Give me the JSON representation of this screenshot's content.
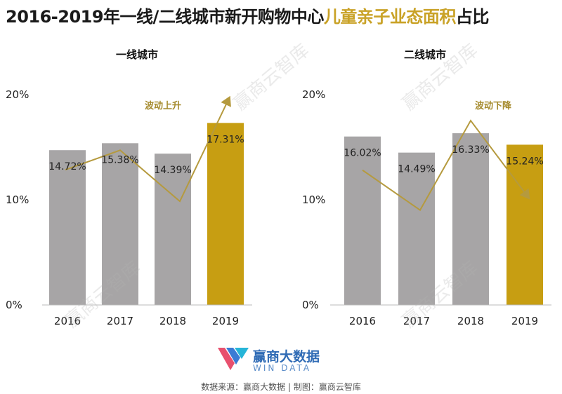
{
  "title_main": "2016-2019年一线/二线城市新开购物中心",
  "title_highlight": "儿童亲子业态面积",
  "title_tail": "占比",
  "colors": {
    "bar_gray": "#a7a5a6",
    "bar_gold": "#c79e12",
    "arrow": "#b59a3e",
    "annotation": "#a58a2c",
    "background": "#ffffff"
  },
  "chart_data": [
    {
      "type": "bar",
      "title": "一线城市",
      "categories": [
        "2016",
        "2017",
        "2018",
        "2019"
      ],
      "values": [
        14.72,
        15.38,
        14.39,
        17.31
      ],
      "value_labels": [
        "14.72%",
        "15.38%",
        "14.39%",
        "17.31%"
      ],
      "highlight_index": 3,
      "ylim": [
        0,
        20
      ],
      "yticks": [
        "0%",
        "10%",
        "20%"
      ],
      "annotation": "波动上升",
      "grid": false
    },
    {
      "type": "bar",
      "title": "二线城市",
      "categories": [
        "2016",
        "2017",
        "2018",
        "2019"
      ],
      "values": [
        16.02,
        14.49,
        16.33,
        15.24
      ],
      "value_labels": [
        "16.02%",
        "14.49%",
        "16.33%",
        "15.24%"
      ],
      "highlight_index": 3,
      "ylim": [
        0,
        20
      ],
      "yticks": [
        "0%",
        "10%",
        "20%"
      ],
      "annotation": "波动下降",
      "grid": false
    }
  ],
  "logo": {
    "cn": "赢商大数据",
    "en": "WIN DATA"
  },
  "source": "数据来源：赢商大数据 | 制图：赢商云智库",
  "watermark": "赢商云智库"
}
